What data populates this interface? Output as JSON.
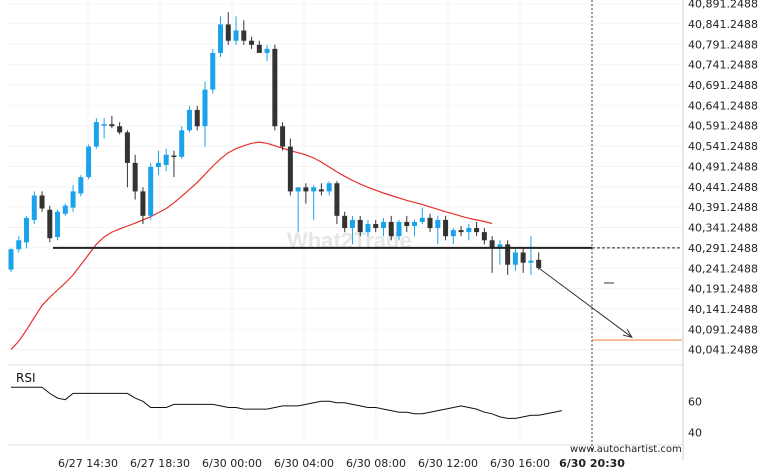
{
  "chart_data": {
    "type": "candlestick",
    "symbol": "",
    "title": "",
    "price_axis_ticks": [
      "40,891.2488",
      "40,841.2488",
      "40,791.2488",
      "40,741.2488",
      "40,691.2488",
      "40,641.2488",
      "40,591.2488",
      "40,541.2488",
      "40,491.2488",
      "40,441.2488",
      "40,391.2488",
      "40,341.2488",
      "40,291.2488",
      "40,241.2488",
      "40,191.2488",
      "40,141.2488",
      "40,091.2488",
      "40,041.2488"
    ],
    "price_axis_values": [
      40891.2488,
      40841.2488,
      40791.2488,
      40741.2488,
      40691.2488,
      40641.2488,
      40591.2488,
      40541.2488,
      40491.2488,
      40441.2488,
      40391.2488,
      40341.2488,
      40291.2488,
      40241.2488,
      40191.2488,
      40141.2488,
      40091.2488,
      40041.2488
    ],
    "price_range": [
      40016,
      40900
    ],
    "time_axis_ticks": [
      "6/27 14:30",
      "6/27 18:30",
      "6/30 00:00",
      "6/30 04:00",
      "6/30 08:00",
      "6/30 12:00",
      "6/30 16:00",
      "6/30 20:30"
    ],
    "active_time_tick": "6/30 20:30",
    "candles": [
      {
        "o": 40238,
        "h": 40290,
        "l": 40232,
        "c": 40288
      },
      {
        "o": 40288,
        "h": 40320,
        "l": 40280,
        "c": 40310
      },
      {
        "o": 40305,
        "h": 40370,
        "l": 40290,
        "c": 40365
      },
      {
        "o": 40360,
        "h": 40430,
        "l": 40350,
        "c": 40420
      },
      {
        "o": 40420,
        "h": 40430,
        "l": 40380,
        "c": 40388
      },
      {
        "o": 40385,
        "h": 40395,
        "l": 40305,
        "c": 40315
      },
      {
        "o": 40318,
        "h": 40385,
        "l": 40310,
        "c": 40380
      },
      {
        "o": 40375,
        "h": 40400,
        "l": 40370,
        "c": 40395
      },
      {
        "o": 40390,
        "h": 40445,
        "l": 40380,
        "c": 40430
      },
      {
        "o": 40425,
        "h": 40470,
        "l": 40418,
        "c": 40465
      },
      {
        "o": 40465,
        "h": 40545,
        "l": 40460,
        "c": 40540
      },
      {
        "o": 40540,
        "h": 40610,
        "l": 40535,
        "c": 40600
      },
      {
        "o": 40595,
        "h": 40610,
        "l": 40560,
        "c": 40595
      },
      {
        "o": 40595,
        "h": 40615,
        "l": 40585,
        "c": 40590
      },
      {
        "o": 40590,
        "h": 40600,
        "l": 40570,
        "c": 40575
      },
      {
        "o": 40575,
        "h": 40580,
        "l": 40440,
        "c": 40500
      },
      {
        "o": 40500,
        "h": 40520,
        "l": 40410,
        "c": 40430
      },
      {
        "o": 40430,
        "h": 40440,
        "l": 40350,
        "c": 40370
      },
      {
        "o": 40370,
        "h": 40500,
        "l": 40360,
        "c": 40490
      },
      {
        "o": 40490,
        "h": 40530,
        "l": 40470,
        "c": 40500
      },
      {
        "o": 40495,
        "h": 40535,
        "l": 40480,
        "c": 40520
      },
      {
        "o": 40518,
        "h": 40530,
        "l": 40465,
        "c": 40515
      },
      {
        "o": 40515,
        "h": 40590,
        "l": 40510,
        "c": 40580
      },
      {
        "o": 40580,
        "h": 40640,
        "l": 40575,
        "c": 40630
      },
      {
        "o": 40630,
        "h": 40640,
        "l": 40580,
        "c": 40590
      },
      {
        "o": 40590,
        "h": 40700,
        "l": 40540,
        "c": 40680
      },
      {
        "o": 40680,
        "h": 40780,
        "l": 40670,
        "c": 40770
      },
      {
        "o": 40770,
        "h": 40860,
        "l": 40760,
        "c": 40840
      },
      {
        "o": 40840,
        "h": 40870,
        "l": 40790,
        "c": 40800
      },
      {
        "o": 40800,
        "h": 40860,
        "l": 40790,
        "c": 40825
      },
      {
        "o": 40825,
        "h": 40850,
        "l": 40790,
        "c": 40800
      },
      {
        "o": 40800,
        "h": 40810,
        "l": 40780,
        "c": 40790
      },
      {
        "o": 40790,
        "h": 40800,
        "l": 40770,
        "c": 40770
      },
      {
        "o": 40770,
        "h": 40790,
        "l": 40750,
        "c": 40780
      },
      {
        "o": 40780,
        "h": 40790,
        "l": 40580,
        "c": 40590
      },
      {
        "o": 40590,
        "h": 40600,
        "l": 40530,
        "c": 40540
      },
      {
        "o": 40540,
        "h": 40560,
        "l": 40420,
        "c": 40430
      },
      {
        "o": 40430,
        "h": 40440,
        "l": 40330,
        "c": 40440
      },
      {
        "o": 40440,
        "h": 40450,
        "l": 40400,
        "c": 40430
      },
      {
        "o": 40430,
        "h": 40445,
        "l": 40360,
        "c": 40440
      },
      {
        "o": 40435,
        "h": 40450,
        "l": 40420,
        "c": 40430
      },
      {
        "o": 40430,
        "h": 40455,
        "l": 40420,
        "c": 40450
      },
      {
        "o": 40450,
        "h": 40455,
        "l": 40350,
        "c": 40370
      },
      {
        "o": 40370,
        "h": 40380,
        "l": 40330,
        "c": 40340
      },
      {
        "o": 40340,
        "h": 40370,
        "l": 40300,
        "c": 40360
      },
      {
        "o": 40360,
        "h": 40370,
        "l": 40320,
        "c": 40330
      },
      {
        "o": 40330,
        "h": 40360,
        "l": 40320,
        "c": 40350
      },
      {
        "o": 40350,
        "h": 40360,
        "l": 40330,
        "c": 40340
      },
      {
        "o": 40340,
        "h": 40365,
        "l": 40320,
        "c": 40355
      },
      {
        "o": 40355,
        "h": 40370,
        "l": 40310,
        "c": 40320
      },
      {
        "o": 40320,
        "h": 40360,
        "l": 40310,
        "c": 40355
      },
      {
        "o": 40355,
        "h": 40370,
        "l": 40330,
        "c": 40345
      },
      {
        "o": 40345,
        "h": 40360,
        "l": 40320,
        "c": 40355
      },
      {
        "o": 40355,
        "h": 40390,
        "l": 40350,
        "c": 40365
      },
      {
        "o": 40365,
        "h": 40375,
        "l": 40330,
        "c": 40340
      },
      {
        "o": 40340,
        "h": 40370,
        "l": 40300,
        "c": 40360
      },
      {
        "o": 40360,
        "h": 40370,
        "l": 40310,
        "c": 40320
      },
      {
        "o": 40320,
        "h": 40340,
        "l": 40300,
        "c": 40335
      },
      {
        "o": 40335,
        "h": 40345,
        "l": 40320,
        "c": 40330
      },
      {
        "o": 40330,
        "h": 40350,
        "l": 40310,
        "c": 40340
      },
      {
        "o": 40340,
        "h": 40355,
        "l": 40320,
        "c": 40330
      },
      {
        "o": 40330,
        "h": 40340,
        "l": 40300,
        "c": 40310
      },
      {
        "o": 40310,
        "h": 40320,
        "l": 40230,
        "c": 40290
      },
      {
        "o": 40290,
        "h": 40310,
        "l": 40250,
        "c": 40300
      },
      {
        "o": 40300,
        "h": 40310,
        "l": 40225,
        "c": 40250
      },
      {
        "o": 40250,
        "h": 40290,
        "l": 40235,
        "c": 40280
      },
      {
        "o": 40280,
        "h": 40290,
        "l": 40230,
        "c": 40255
      },
      {
        "o": 40255,
        "h": 40320,
        "l": 40225,
        "c": 40260
      },
      {
        "o": 40262,
        "h": 40280,
        "l": 40238,
        "c": 40242
      }
    ],
    "colors": {
      "bull": "#1aa3ea",
      "bear": "#333333",
      "ma": "#e8302b",
      "level": "#222222",
      "target": "#f08a50",
      "rsi": "#111111"
    },
    "moving_average": [
      40042,
      40062,
      40090,
      40120,
      40150,
      40170,
      40188,
      40205,
      40225,
      40250,
      40275,
      40300,
      40318,
      40330,
      40338,
      40345,
      40352,
      40360,
      40368,
      40378,
      40388,
      40402,
      40418,
      40435,
      40452,
      40472,
      40492,
      40510,
      40525,
      40535,
      40542,
      40548,
      40551,
      40548,
      40542,
      40536,
      40530,
      40525,
      40520,
      40512,
      40502,
      40490,
      40478,
      40467,
      40457,
      40448,
      40440,
      40433,
      40426,
      40420,
      40414,
      40408,
      40403,
      40398,
      40392,
      40386,
      40380,
      40375,
      40369,
      40364,
      40360,
      40356,
      40351
    ],
    "support_level": 40291.2488,
    "target_level": 40065,
    "projection": {
      "from": {
        "bar": 68,
        "price": 40242
      },
      "to": {
        "bar": 80,
        "price": 40072
      }
    },
    "rsi": {
      "label": "RSI",
      "ticks": [
        60,
        40
      ],
      "range": [
        32,
        80
      ],
      "values": [
        69,
        69,
        69,
        69,
        69,
        65,
        62,
        61,
        65,
        65,
        65,
        65,
        65,
        65,
        65,
        65,
        62,
        60,
        56,
        56,
        56,
        58,
        58,
        58,
        58,
        58,
        58,
        57,
        56,
        56,
        55,
        55,
        55,
        55,
        56,
        57,
        57,
        57,
        58,
        59,
        60,
        60,
        59,
        59,
        58,
        57,
        56,
        56,
        55,
        54,
        53,
        53,
        52,
        52,
        53,
        54,
        55,
        56,
        57,
        56,
        55,
        53,
        52,
        50,
        49,
        49,
        50,
        51,
        51,
        52,
        53,
        54
      ]
    }
  },
  "watermark": "What2Trade",
  "credit": "www.autochartist.com"
}
